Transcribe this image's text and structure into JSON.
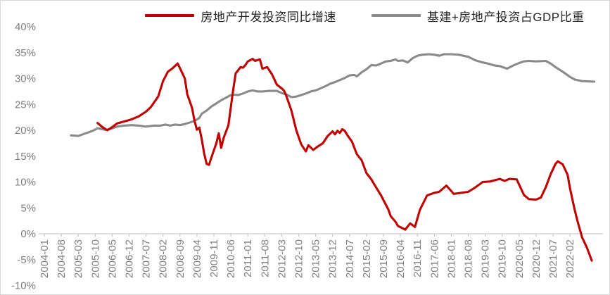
{
  "chart_data": {
    "type": "line",
    "title": "",
    "xlabel": "",
    "ylabel": "",
    "grid": false,
    "legend_position": "top-center",
    "axis_color": "#c9c9c9",
    "tick_label_color": "#808080",
    "y_ticks": [
      {
        "v": 40,
        "label": "40%"
      },
      {
        "v": 35,
        "label": "35%"
      },
      {
        "v": 30,
        "label": "30%"
      },
      {
        "v": 25,
        "label": "25%"
      },
      {
        "v": 20,
        "label": "20%"
      },
      {
        "v": 15,
        "label": "15%"
      },
      {
        "v": 10,
        "label": "10%"
      },
      {
        "v": 5,
        "label": "5%"
      },
      {
        "v": 0,
        "label": "0%"
      },
      {
        "v": -5,
        "label": "-5%"
      },
      {
        "v": -10,
        "label": "-10%"
      }
    ],
    "ylim": [
      -10,
      40
    ],
    "x_tick_interval_months": 7,
    "x_tick_labels": [
      "2004-01",
      "2004-08",
      "2005-03",
      "2005-10",
      "2006-05",
      "2006-12",
      "2007-07",
      "2008-02",
      "2008-09",
      "2009-04",
      "2009-11",
      "2010-06",
      "2011-01",
      "2011-08",
      "2012-03",
      "2012-10",
      "2013-05",
      "2013-12",
      "2014-07",
      "2015-02",
      "2015-09",
      "2016-04",
      "2016-11",
      "2017-06",
      "2018-01",
      "2018-08",
      "2019-03",
      "2019-10",
      "2020-05",
      "2020-12",
      "2021-07",
      "2022-02"
    ],
    "x_month0_label": "2004-01",
    "series": [
      {
        "id": "gdp-share-line",
        "name": "基建+房地产投资占GDP比重",
        "color": "#8a8a8a",
        "points": [
          [
            11,
            19.0
          ],
          [
            14,
            18.9
          ],
          [
            17,
            19.4
          ],
          [
            20,
            19.9
          ],
          [
            22,
            20.4
          ],
          [
            25,
            20.1
          ],
          [
            27,
            20.2
          ],
          [
            30,
            20.7
          ],
          [
            33,
            20.9
          ],
          [
            36,
            21.0
          ],
          [
            39,
            20.9
          ],
          [
            42,
            20.7
          ],
          [
            45,
            20.9
          ],
          [
            48,
            20.9
          ],
          [
            50,
            21.1
          ],
          [
            52,
            20.9
          ],
          [
            54,
            21.1
          ],
          [
            56,
            21.0
          ],
          [
            58,
            21.2
          ],
          [
            62,
            21.8
          ],
          [
            64,
            22.4
          ],
          [
            65,
            23.2
          ],
          [
            67,
            23.8
          ],
          [
            69,
            24.6
          ],
          [
            71,
            25.2
          ],
          [
            73,
            25.8
          ],
          [
            75,
            26.3
          ],
          [
            77,
            26.8
          ],
          [
            78,
            26.9
          ],
          [
            80,
            26.8
          ],
          [
            82,
            27.1
          ],
          [
            84,
            27.5
          ],
          [
            86,
            27.7
          ],
          [
            88,
            27.5
          ],
          [
            90,
            27.5
          ],
          [
            93,
            27.6
          ],
          [
            96,
            27.6
          ],
          [
            98,
            27.2
          ],
          [
            100,
            26.9
          ],
          [
            102,
            26.4
          ],
          [
            104,
            26.5
          ],
          [
            106,
            26.8
          ],
          [
            108,
            27.1
          ],
          [
            110,
            27.5
          ],
          [
            112,
            27.7
          ],
          [
            114,
            28.1
          ],
          [
            116,
            28.5
          ],
          [
            118,
            29.0
          ],
          [
            120,
            29.3
          ],
          [
            122,
            29.7
          ],
          [
            124,
            30.1
          ],
          [
            126,
            30.6
          ],
          [
            128,
            30.7
          ],
          [
            129,
            30.4
          ],
          [
            131,
            31.2
          ],
          [
            133,
            31.8
          ],
          [
            135,
            32.6
          ],
          [
            137,
            32.5
          ],
          [
            139,
            32.9
          ],
          [
            141,
            33.3
          ],
          [
            143,
            33.4
          ],
          [
            145,
            33.7
          ],
          [
            146,
            33.4
          ],
          [
            148,
            33.5
          ],
          [
            150,
            33.1
          ],
          [
            152,
            33.9
          ],
          [
            154,
            34.4
          ],
          [
            156,
            34.6
          ],
          [
            159,
            34.7
          ],
          [
            161,
            34.6
          ],
          [
            163,
            34.4
          ],
          [
            165,
            34.7
          ],
          [
            168,
            34.7
          ],
          [
            171,
            34.6
          ],
          [
            173,
            34.4
          ],
          [
            175,
            34.2
          ],
          [
            178,
            33.5
          ],
          [
            181,
            33.1
          ],
          [
            183,
            32.9
          ],
          [
            186,
            32.5
          ],
          [
            188,
            32.4
          ],
          [
            191,
            31.9
          ],
          [
            194,
            32.6
          ],
          [
            196,
            33.0
          ],
          [
            198,
            33.3
          ],
          [
            200,
            33.4
          ],
          [
            203,
            33.3
          ],
          [
            207,
            33.4
          ],
          [
            209,
            32.9
          ],
          [
            211,
            32.2
          ],
          [
            213,
            31.6
          ],
          [
            215,
            31.0
          ],
          [
            217,
            30.3
          ],
          [
            219,
            29.8
          ],
          [
            222,
            29.5
          ],
          [
            227,
            29.4
          ]
        ]
      },
      {
        "id": "real-estate-growth-line",
        "name": "房地产开发投资同比增速",
        "color": "#c00000",
        "points": [
          [
            22,
            21.4
          ],
          [
            24,
            20.6
          ],
          [
            26,
            20.0
          ],
          [
            28,
            20.6
          ],
          [
            30,
            21.3
          ],
          [
            33,
            21.7
          ],
          [
            36,
            22.1
          ],
          [
            39,
            22.7
          ],
          [
            42,
            23.6
          ],
          [
            44,
            24.5
          ],
          [
            47,
            26.5
          ],
          [
            49,
            29.5
          ],
          [
            51,
            31.3
          ],
          [
            53,
            32.0
          ],
          [
            55,
            32.9
          ],
          [
            56,
            32.0
          ],
          [
            58,
            30.0
          ],
          [
            59,
            27.0
          ],
          [
            61,
            24.3
          ],
          [
            62,
            21.8
          ],
          [
            63,
            20.1
          ],
          [
            64,
            20.5
          ],
          [
            65,
            18.2
          ],
          [
            66,
            15.5
          ],
          [
            67,
            13.5
          ],
          [
            68,
            13.3
          ],
          [
            69,
            14.8
          ],
          [
            71,
            17.5
          ],
          [
            72,
            19.4
          ],
          [
            73,
            16.6
          ],
          [
            74,
            18.5
          ],
          [
            76,
            21.0
          ],
          [
            77,
            24.5
          ],
          [
            78,
            28.0
          ],
          [
            79,
            31.0
          ],
          [
            81,
            32.2
          ],
          [
            82,
            32.1
          ],
          [
            83,
            32.6
          ],
          [
            84,
            33.3
          ],
          [
            86,
            33.8
          ],
          [
            87,
            33.4
          ],
          [
            89,
            33.7
          ],
          [
            90,
            31.9
          ],
          [
            92,
            32.2
          ],
          [
            94,
            30.8
          ],
          [
            96,
            28.8
          ],
          [
            98,
            28.1
          ],
          [
            99,
            27.6
          ],
          [
            100,
            26.5
          ],
          [
            102,
            23.8
          ],
          [
            104,
            20.0
          ],
          [
            106,
            17.3
          ],
          [
            108,
            15.9
          ],
          [
            109,
            17.1
          ],
          [
            111,
            16.2
          ],
          [
            113,
            16.9
          ],
          [
            115,
            17.5
          ],
          [
            117,
            18.9
          ],
          [
            119,
            19.8
          ],
          [
            120,
            19.2
          ],
          [
            121,
            19.9
          ],
          [
            122,
            19.5
          ],
          [
            123,
            20.2
          ],
          [
            124,
            19.9
          ],
          [
            125,
            19.1
          ],
          [
            127,
            17.8
          ],
          [
            129,
            15.4
          ],
          [
            131,
            14.2
          ],
          [
            133,
            11.7
          ],
          [
            135,
            10.5
          ],
          [
            136,
            9.7
          ],
          [
            139,
            7.4
          ],
          [
            142,
            4.7
          ],
          [
            143,
            3.4
          ],
          [
            145,
            2.3
          ],
          [
            146,
            1.5
          ],
          [
            149,
            0.8
          ],
          [
            151,
            2.0
          ],
          [
            153,
            1.3
          ],
          [
            155,
            4.6
          ],
          [
            158,
            7.4
          ],
          [
            161,
            7.9
          ],
          [
            163,
            8.1
          ],
          [
            166,
            9.3
          ],
          [
            169,
            7.7
          ],
          [
            172,
            7.9
          ],
          [
            175,
            8.1
          ],
          [
            178,
            9.0
          ],
          [
            181,
            10.0
          ],
          [
            184,
            10.1
          ],
          [
            188,
            10.6
          ],
          [
            190,
            10.2
          ],
          [
            192,
            10.6
          ],
          [
            195,
            10.5
          ],
          [
            196,
            9.5
          ],
          [
            198,
            7.5
          ],
          [
            200,
            6.7
          ],
          [
            203,
            6.6
          ],
          [
            205,
            7.0
          ],
          [
            207,
            9.0
          ],
          [
            209,
            11.5
          ],
          [
            211,
            13.5
          ],
          [
            212,
            14.0
          ],
          [
            214,
            13.4
          ],
          [
            216,
            11.4
          ],
          [
            217,
            8.8
          ],
          [
            219,
            4.5
          ],
          [
            220,
            2.6
          ],
          [
            222,
            -0.7
          ],
          [
            224,
            -2.7
          ],
          [
            226,
            -5.2
          ]
        ]
      }
    ]
  },
  "legend": {
    "item1": "房地产开发投资同比增速",
    "item2": "基建+房地产投资占GDP比重"
  }
}
